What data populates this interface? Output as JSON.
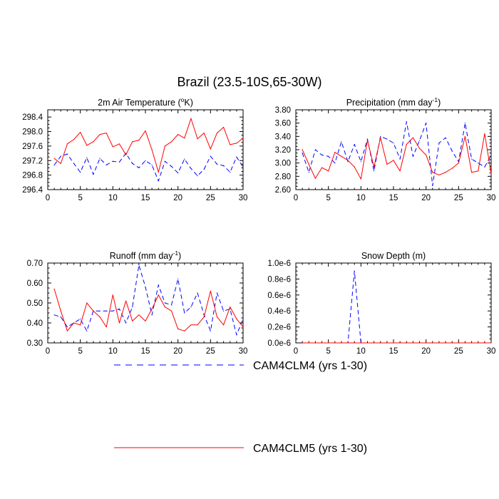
{
  "figure": {
    "title": "Brazil (23.5-10S,65-30W)",
    "legend": [
      {
        "label": "CAM4CLM4 (yrs 1-30)",
        "color": "#0000ff",
        "dash": true
      },
      {
        "label": "CAM4CLM5 (yrs 1-30)",
        "color": "#ff0000",
        "dash": false
      }
    ]
  },
  "chart_data": [
    {
      "type": "line",
      "title": "2m Air Temperature (°K)",
      "title_main": "2m Air Temperature (",
      "title_sup": "o",
      "title_tail": "K)",
      "xlim": [
        0,
        30
      ],
      "ylim": [
        296.4,
        298.6
      ],
      "xticks": [
        0,
        5,
        10,
        15,
        20,
        25,
        30
      ],
      "xtick_labels": [
        "0",
        "5",
        "10",
        "15",
        "20",
        "25",
        "30"
      ],
      "yticks": [
        296.4,
        296.8,
        297.2,
        297.6,
        298.0,
        298.4
      ],
      "ytick_labels": [
        "296.4",
        "296.8",
        "297.2",
        "297.6",
        "298.0",
        "298.4"
      ],
      "x": [
        1,
        2,
        3,
        4,
        5,
        6,
        7,
        8,
        9,
        10,
        11,
        12,
        13,
        14,
        15,
        16,
        17,
        18,
        19,
        20,
        21,
        22,
        23,
        24,
        25,
        26,
        27,
        28,
        29,
        30
      ],
      "series": [
        {
          "name": "CAM4CLM4",
          "values": [
            297.08,
            297.32,
            297.38,
            297.12,
            296.88,
            297.28,
            296.82,
            297.26,
            297.08,
            297.18,
            297.16,
            297.4,
            297.12,
            297.0,
            297.2,
            297.08,
            296.64,
            297.18,
            297.04,
            296.86,
            297.24,
            296.98,
            296.78,
            296.96,
            297.32,
            297.1,
            297.06,
            296.88,
            297.3,
            297.02
          ]
        },
        {
          "name": "CAM4CLM5",
          "values": [
            297.26,
            297.12,
            297.66,
            297.78,
            297.98,
            297.62,
            297.72,
            297.92,
            297.96,
            297.58,
            297.66,
            297.36,
            297.72,
            297.76,
            298.02,
            297.5,
            296.88,
            297.6,
            297.72,
            297.92,
            297.82,
            298.36,
            297.8,
            297.96,
            297.52,
            297.96,
            298.12,
            297.64,
            297.68,
            297.82
          ]
        }
      ]
    },
    {
      "type": "line",
      "title": "Precipitation (mm day⁻¹)",
      "title_main": "Precipitation (mm day",
      "title_sup": "-1",
      "title_tail": ")",
      "xlim": [
        0,
        30
      ],
      "ylim": [
        2.6,
        3.8
      ],
      "xticks": [
        0,
        5,
        10,
        15,
        20,
        25,
        30
      ],
      "xtick_labels": [
        "0",
        "5",
        "10",
        "15",
        "20",
        "25",
        "30"
      ],
      "yticks": [
        2.6,
        2.8,
        3.0,
        3.2,
        3.4,
        3.6,
        3.8
      ],
      "ytick_labels": [
        "2.60",
        "2.80",
        "3.00",
        "3.20",
        "3.40",
        "3.60",
        "3.80"
      ],
      "x": [
        1,
        2,
        3,
        4,
        5,
        6,
        7,
        8,
        9,
        10,
        11,
        12,
        13,
        14,
        15,
        16,
        17,
        18,
        19,
        20,
        21,
        22,
        23,
        24,
        25,
        26,
        27,
        28,
        29,
        30
      ],
      "series": [
        {
          "name": "CAM4CLM4",
          "values": [
            3.15,
            2.86,
            3.2,
            3.12,
            3.1,
            3.0,
            3.32,
            3.02,
            3.28,
            3.02,
            3.36,
            2.88,
            3.4,
            3.36,
            3.3,
            3.06,
            3.62,
            3.1,
            3.34,
            3.6,
            2.66,
            3.3,
            3.38,
            3.18,
            3.02,
            3.6,
            3.06,
            3.0,
            2.94,
            3.12
          ]
        },
        {
          "name": "CAM4CLM5",
          "values": [
            3.2,
            2.98,
            2.77,
            2.93,
            2.88,
            3.16,
            3.1,
            3.04,
            2.94,
            2.76,
            3.34,
            2.94,
            3.38,
            2.98,
            3.04,
            2.88,
            3.28,
            3.38,
            3.22,
            3.12,
            2.86,
            2.82,
            2.86,
            2.92,
            3.0,
            3.4,
            2.86,
            2.88,
            3.44,
            2.84
          ]
        }
      ]
    },
    {
      "type": "line",
      "title": "Runoff (mm day⁻¹)",
      "title_main": "Runoff (mm day",
      "title_sup": "-1",
      "title_tail": ")",
      "xlim": [
        0,
        30
      ],
      "ylim": [
        0.3,
        0.7
      ],
      "xticks": [
        0,
        5,
        10,
        15,
        20,
        25,
        30
      ],
      "xtick_labels": [
        "0",
        "5",
        "10",
        "15",
        "20",
        "25",
        "30"
      ],
      "yticks": [
        0.3,
        0.4,
        0.5,
        0.6,
        0.7
      ],
      "ytick_labels": [
        "0.30",
        "0.40",
        "0.50",
        "0.60",
        "0.70"
      ],
      "x": [
        1,
        2,
        3,
        4,
        5,
        6,
        7,
        8,
        9,
        10,
        11,
        12,
        13,
        14,
        15,
        16,
        17,
        18,
        19,
        20,
        21,
        22,
        23,
        24,
        25,
        26,
        27,
        28,
        29,
        30
      ],
      "series": [
        {
          "name": "CAM4CLM4",
          "values": [
            0.44,
            0.43,
            0.38,
            0.4,
            0.42,
            0.36,
            0.46,
            0.46,
            0.46,
            0.46,
            0.47,
            0.4,
            0.48,
            0.69,
            0.58,
            0.44,
            0.59,
            0.5,
            0.49,
            0.62,
            0.45,
            0.48,
            0.55,
            0.44,
            0.36,
            0.55,
            0.46,
            0.47,
            0.34,
            0.42
          ]
        },
        {
          "name": "CAM4CLM5",
          "values": [
            0.57,
            0.46,
            0.36,
            0.4,
            0.39,
            0.5,
            0.46,
            0.43,
            0.38,
            0.54,
            0.4,
            0.51,
            0.41,
            0.44,
            0.41,
            0.47,
            0.54,
            0.48,
            0.46,
            0.37,
            0.36,
            0.39,
            0.39,
            0.43,
            0.56,
            0.43,
            0.39,
            0.48,
            0.42,
            0.38
          ]
        }
      ]
    },
    {
      "type": "line",
      "title": "Snow Depth (m)",
      "title_main": "Snow Depth (m)",
      "title_sup": "",
      "title_tail": "",
      "xlim": [
        0,
        30
      ],
      "ylim": [
        0,
        1e-06
      ],
      "xticks": [
        0,
        5,
        10,
        15,
        20,
        25,
        30
      ],
      "xtick_labels": [
        "0",
        "5",
        "10",
        "15",
        "20",
        "25",
        "30"
      ],
      "yticks": [
        0,
        2e-07,
        4e-07,
        6e-07,
        8e-07,
        1e-06
      ],
      "ytick_labels": [
        "0.0e-6",
        "0.2e-6",
        "0.4e-6",
        "0.6e-6",
        "0.8e-6",
        "1.0e-6"
      ],
      "x": [
        1,
        2,
        3,
        4,
        5,
        6,
        7,
        8,
        9,
        10,
        11,
        12,
        13,
        14,
        15,
        16,
        17,
        18,
        19,
        20,
        21,
        22,
        23,
        24,
        25,
        26,
        27,
        28,
        29,
        30
      ],
      "series": [
        {
          "name": "CAM4CLM4",
          "values": [
            0,
            0,
            0,
            0,
            0,
            0,
            0,
            0,
            9e-07,
            0,
            0,
            0,
            0,
            0,
            0,
            0,
            0,
            0,
            0,
            0,
            0,
            0,
            0,
            0,
            0,
            0,
            0,
            0,
            0,
            0
          ]
        },
        {
          "name": "CAM4CLM5",
          "values": [
            0,
            0,
            0,
            0,
            0,
            0,
            0,
            0,
            0,
            0,
            0,
            0,
            0,
            0,
            0,
            0,
            0,
            0,
            0,
            0,
            0,
            0,
            0,
            0,
            0,
            0,
            0,
            0,
            0,
            0
          ]
        }
      ]
    }
  ]
}
